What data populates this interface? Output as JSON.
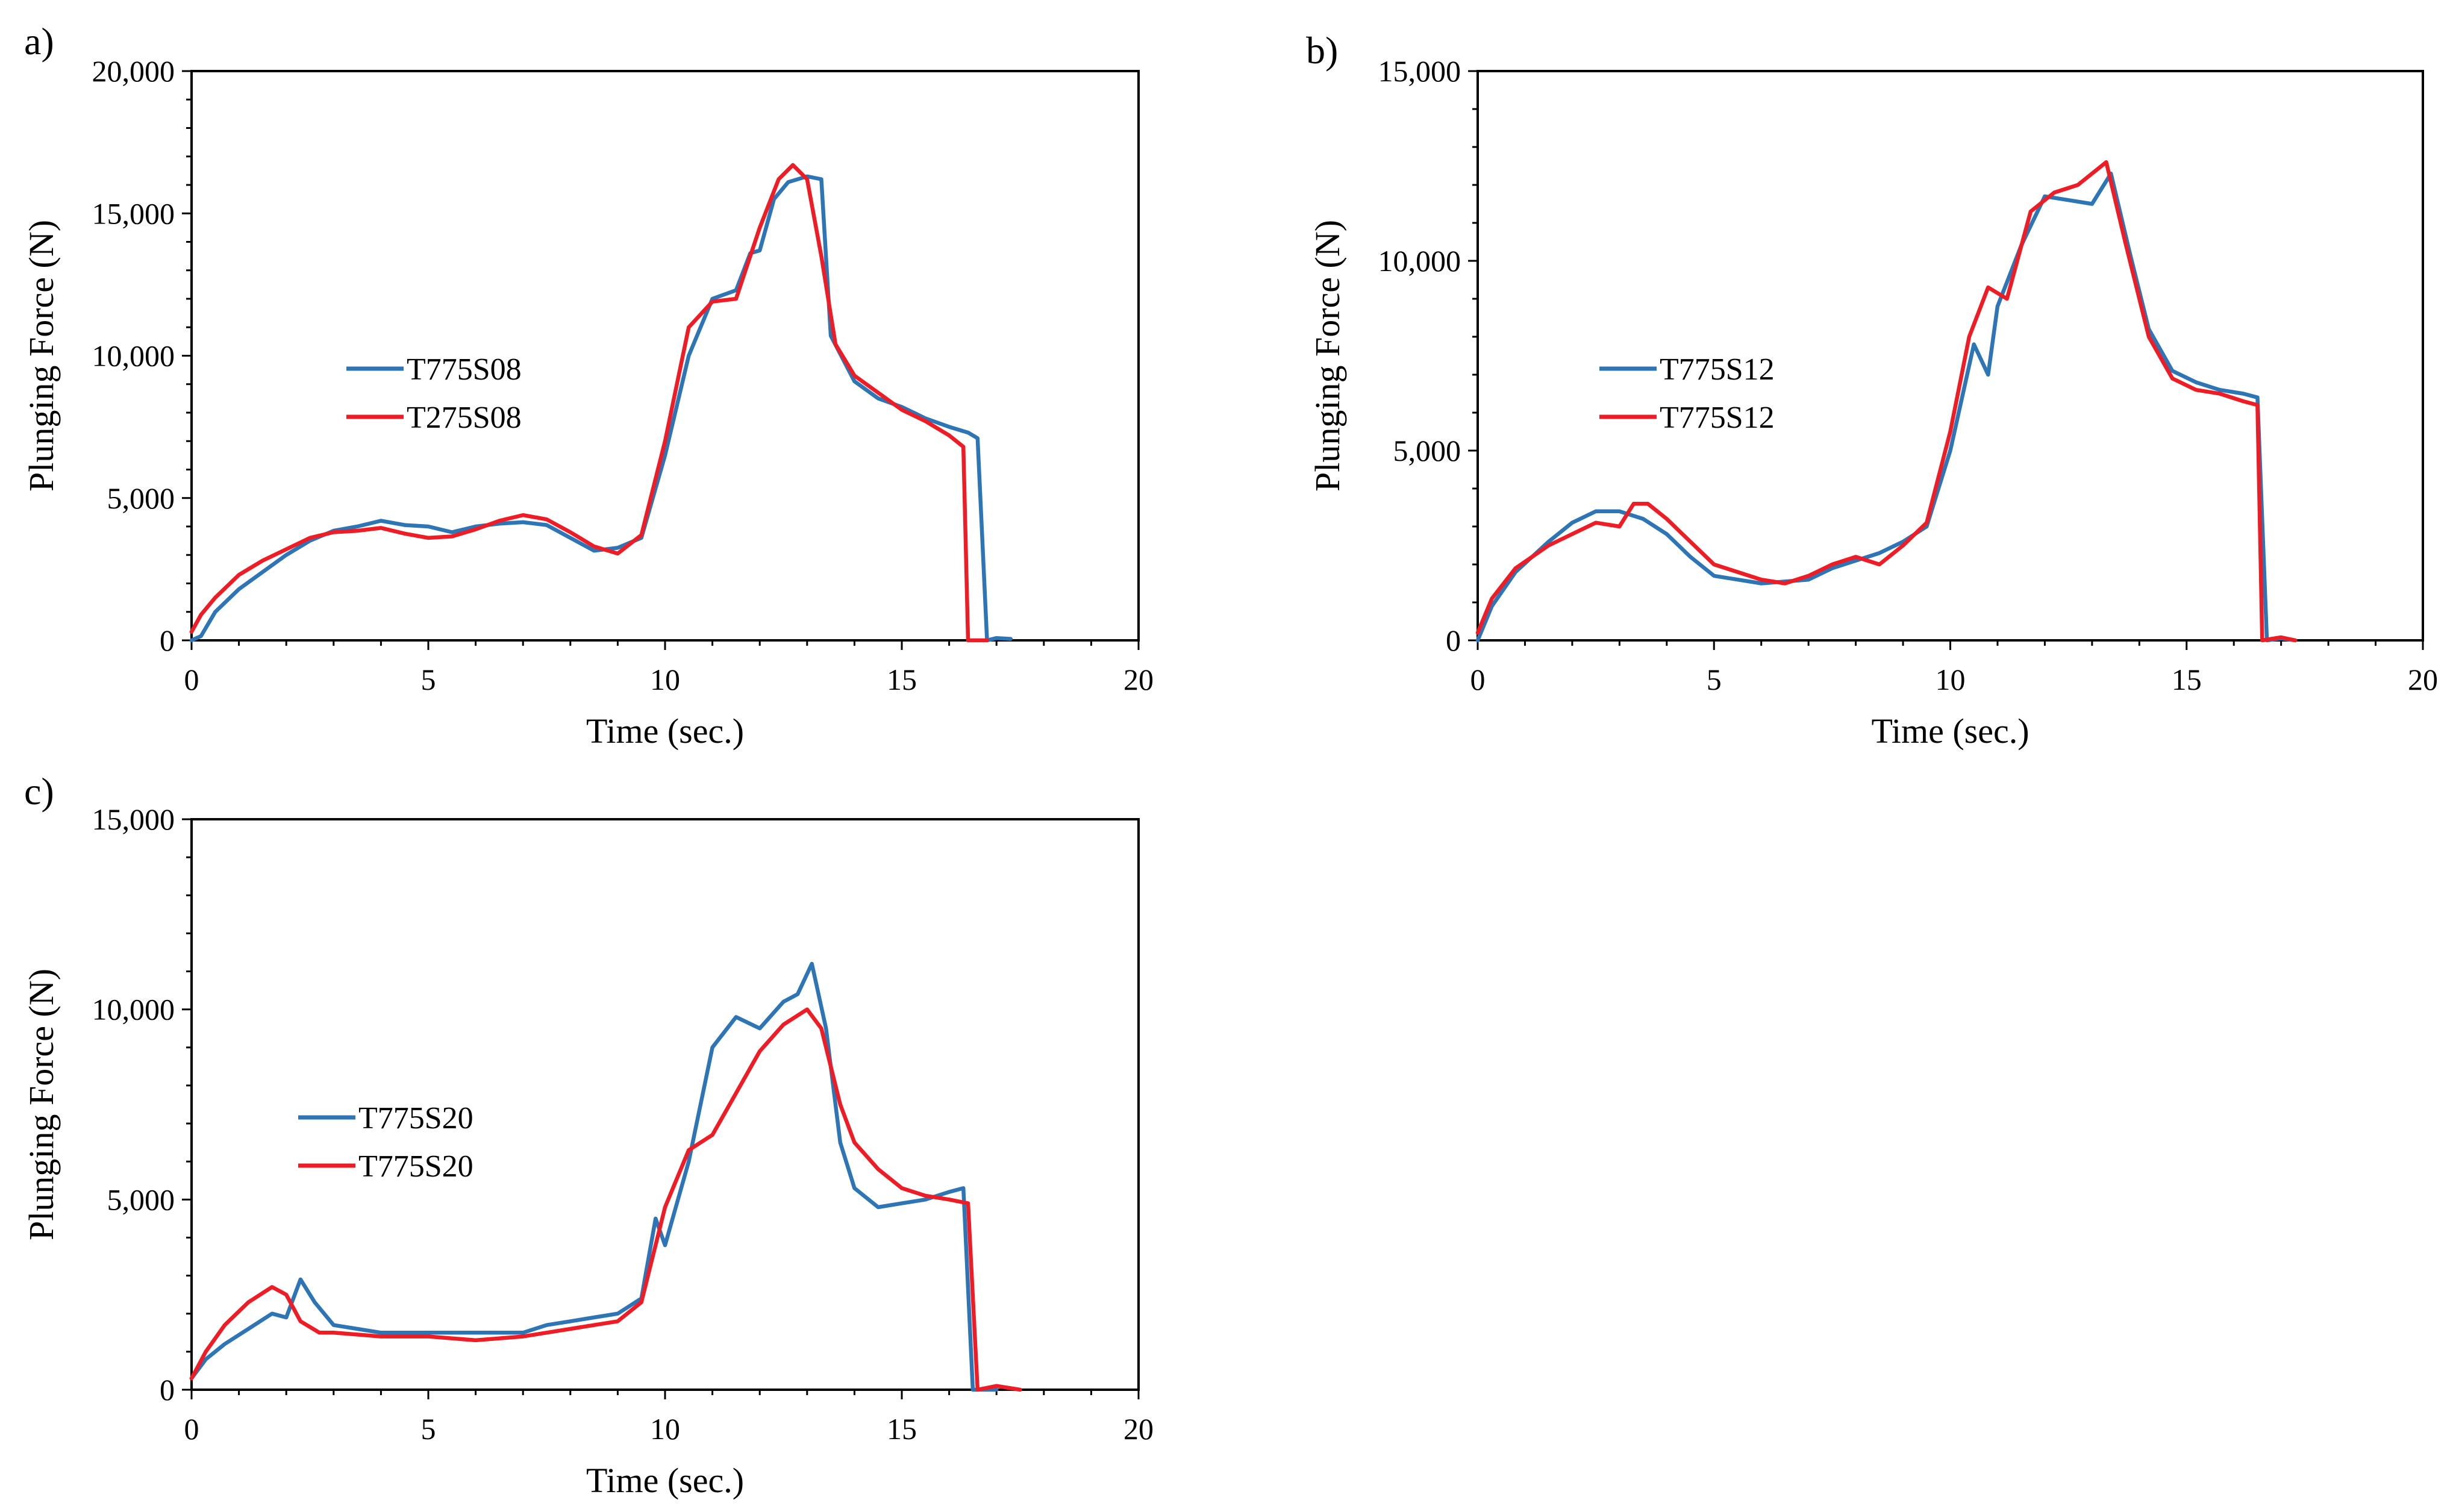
{
  "colors": {
    "blue": "#2E75B6",
    "red": "#EE1C25"
  },
  "chart_data": [
    {
      "panel_label": "a)",
      "type": "line",
      "xlabel": "Time (sec.)",
      "ylabel": "Plunging Force (N)",
      "xlim": [
        0,
        20
      ],
      "ylim": [
        0,
        20000
      ],
      "xticks": [
        "0",
        "5",
        "10",
        "15",
        "20"
      ],
      "yticks": [
        "0",
        "5,000",
        "10,000",
        "15,000",
        "20,000"
      ],
      "grid": false,
      "legend": "center-left",
      "series": [
        {
          "name": "T775S08",
          "color": "#2E75B6",
          "points": [
            [
              0,
              0
            ],
            [
              0.2,
              150
            ],
            [
              0.5,
              1000
            ],
            [
              1,
              1800
            ],
            [
              1.5,
              2400
            ],
            [
              2,
              3000
            ],
            [
              2.5,
              3500
            ],
            [
              3,
              3850
            ],
            [
              3.5,
              4000
            ],
            [
              4,
              4200
            ],
            [
              4.5,
              4050
            ],
            [
              5,
              4000
            ],
            [
              5.5,
              3800
            ],
            [
              6,
              4000
            ],
            [
              6.5,
              4100
            ],
            [
              7,
              4150
            ],
            [
              7.5,
              4050
            ],
            [
              8,
              3600
            ],
            [
              8.5,
              3150
            ],
            [
              9,
              3250
            ],
            [
              9.5,
              3600
            ],
            [
              10,
              6500
            ],
            [
              10.5,
              10000
            ],
            [
              11,
              12000
            ],
            [
              11.5,
              12300
            ],
            [
              11.8,
              13600
            ],
            [
              12,
              13700
            ],
            [
              12.3,
              15500
            ],
            [
              12.6,
              16100
            ],
            [
              13,
              16300
            ],
            [
              13.3,
              16200
            ],
            [
              13.5,
              10700
            ],
            [
              14,
              9100
            ],
            [
              14.5,
              8500
            ],
            [
              15,
              8200
            ],
            [
              15.5,
              7800
            ],
            [
              16,
              7500
            ],
            [
              16.4,
              7300
            ],
            [
              16.6,
              7100
            ],
            [
              16.8,
              0
            ],
            [
              17,
              80
            ],
            [
              17.3,
              50
            ]
          ]
        },
        {
          "name": "T275S08",
          "color": "#EE1C25",
          "points": [
            [
              0,
              300
            ],
            [
              0.2,
              900
            ],
            [
              0.5,
              1500
            ],
            [
              1,
              2300
            ],
            [
              1.5,
              2800
            ],
            [
              2,
              3200
            ],
            [
              2.5,
              3600
            ],
            [
              3,
              3800
            ],
            [
              3.5,
              3850
            ],
            [
              4,
              3950
            ],
            [
              4.5,
              3750
            ],
            [
              5,
              3600
            ],
            [
              5.5,
              3650
            ],
            [
              6,
              3900
            ],
            [
              6.5,
              4200
            ],
            [
              7,
              4400
            ],
            [
              7.5,
              4250
            ],
            [
              8,
              3800
            ],
            [
              8.5,
              3300
            ],
            [
              9,
              3050
            ],
            [
              9.5,
              3700
            ],
            [
              10,
              7000
            ],
            [
              10.5,
              11000
            ],
            [
              11,
              11900
            ],
            [
              11.5,
              12000
            ],
            [
              12,
              14500
            ],
            [
              12.4,
              16200
            ],
            [
              12.7,
              16700
            ],
            [
              13,
              16200
            ],
            [
              13.3,
              13500
            ],
            [
              13.6,
              10400
            ],
            [
              14,
              9300
            ],
            [
              14.5,
              8700
            ],
            [
              15,
              8100
            ],
            [
              15.5,
              7700
            ],
            [
              16,
              7200
            ],
            [
              16.3,
              6800
            ],
            [
              16.4,
              0
            ],
            [
              16.8,
              0
            ]
          ]
        }
      ]
    },
    {
      "panel_label": "b)",
      "type": "line",
      "xlabel": "Time (sec.)",
      "ylabel": "Plunging Force (N)",
      "xlim": [
        0,
        20
      ],
      "ylim": [
        0,
        15000
      ],
      "xticks": [
        "0",
        "5",
        "10",
        "15",
        "20"
      ],
      "yticks": [
        "0",
        "5,000",
        "10,000",
        "15,000"
      ],
      "grid": false,
      "legend": "center-left",
      "series": [
        {
          "name": "T775S12",
          "color": "#2E75B6",
          "points": [
            [
              0,
              0
            ],
            [
              0.3,
              900
            ],
            [
              0.8,
              1800
            ],
            [
              1.5,
              2600
            ],
            [
              2,
              3100
            ],
            [
              2.5,
              3400
            ],
            [
              3,
              3400
            ],
            [
              3.5,
              3200
            ],
            [
              4,
              2800
            ],
            [
              4.5,
              2200
            ],
            [
              5,
              1700
            ],
            [
              5.5,
              1600
            ],
            [
              6,
              1500
            ],
            [
              6.5,
              1550
            ],
            [
              7,
              1600
            ],
            [
              7.5,
              1900
            ],
            [
              8,
              2100
            ],
            [
              8.5,
              2300
            ],
            [
              9,
              2600
            ],
            [
              9.5,
              3000
            ],
            [
              10,
              5000
            ],
            [
              10.5,
              7800
            ],
            [
              10.8,
              7000
            ],
            [
              11,
              8800
            ],
            [
              11.5,
              10400
            ],
            [
              12,
              11700
            ],
            [
              12.5,
              11600
            ],
            [
              13,
              11500
            ],
            [
              13.4,
              12300
            ],
            [
              13.8,
              10200
            ],
            [
              14.2,
              8200
            ],
            [
              14.7,
              7100
            ],
            [
              15.2,
              6800
            ],
            [
              15.7,
              6600
            ],
            [
              16.2,
              6500
            ],
            [
              16.5,
              6400
            ],
            [
              16.7,
              0
            ],
            [
              17,
              50
            ],
            [
              17.3,
              0
            ]
          ]
        },
        {
          "name": "T775S12",
          "color": "#EE1C25",
          "points": [
            [
              0,
              200
            ],
            [
              0.3,
              1100
            ],
            [
              0.8,
              1900
            ],
            [
              1.5,
              2500
            ],
            [
              2,
              2800
            ],
            [
              2.5,
              3100
            ],
            [
              3,
              3000
            ],
            [
              3.3,
              3600
            ],
            [
              3.6,
              3600
            ],
            [
              4,
              3200
            ],
            [
              4.5,
              2600
            ],
            [
              5,
              2000
            ],
            [
              5.5,
              1800
            ],
            [
              6,
              1600
            ],
            [
              6.5,
              1500
            ],
            [
              7,
              1700
            ],
            [
              7.5,
              2000
            ],
            [
              8,
              2200
            ],
            [
              8.5,
              2000
            ],
            [
              9,
              2500
            ],
            [
              9.5,
              3100
            ],
            [
              10,
              5500
            ],
            [
              10.4,
              8000
            ],
            [
              10.8,
              9300
            ],
            [
              11.2,
              9000
            ],
            [
              11.7,
              11300
            ],
            [
              12.2,
              11800
            ],
            [
              12.7,
              12000
            ],
            [
              13.3,
              12600
            ],
            [
              13.7,
              10500
            ],
            [
              14.2,
              8000
            ],
            [
              14.7,
              6900
            ],
            [
              15.2,
              6600
            ],
            [
              15.7,
              6500
            ],
            [
              16.2,
              6300
            ],
            [
              16.5,
              6200
            ],
            [
              16.6,
              0
            ],
            [
              17,
              80
            ],
            [
              17.3,
              0
            ]
          ]
        }
      ]
    },
    {
      "panel_label": "c)",
      "type": "line",
      "xlabel": "Time (sec.)",
      "ylabel": "Plunging Force (N)",
      "xlim": [
        0,
        20
      ],
      "ylim": [
        0,
        15000
      ],
      "xticks": [
        "0",
        "5",
        "10",
        "15",
        "20"
      ],
      "yticks": [
        "0",
        "5,000",
        "10,000",
        "15,000"
      ],
      "grid": false,
      "legend": "center-left",
      "series": [
        {
          "name": "T775S20",
          "color": "#2E75B6",
          "points": [
            [
              0,
              300
            ],
            [
              0.3,
              800
            ],
            [
              0.7,
              1200
            ],
            [
              1.2,
              1600
            ],
            [
              1.7,
              2000
            ],
            [
              2,
              1900
            ],
            [
              2.3,
              2900
            ],
            [
              2.6,
              2300
            ],
            [
              3,
              1700
            ],
            [
              3.5,
              1600
            ],
            [
              4,
              1500
            ],
            [
              5,
              1500
            ],
            [
              6,
              1500
            ],
            [
              7,
              1500
            ],
            [
              7.5,
              1700
            ],
            [
              8,
              1800
            ],
            [
              8.5,
              1900
            ],
            [
              9,
              2000
            ],
            [
              9.5,
              2400
            ],
            [
              9.8,
              4500
            ],
            [
              10,
              3800
            ],
            [
              10.5,
              6000
            ],
            [
              11,
              9000
            ],
            [
              11.5,
              9800
            ],
            [
              12,
              9500
            ],
            [
              12.5,
              10200
            ],
            [
              12.8,
              10400
            ],
            [
              13.1,
              11200
            ],
            [
              13.4,
              9500
            ],
            [
              13.7,
              6500
            ],
            [
              14,
              5300
            ],
            [
              14.5,
              4800
            ],
            [
              15,
              4900
            ],
            [
              15.5,
              5000
            ],
            [
              16,
              5200
            ],
            [
              16.3,
              5300
            ],
            [
              16.5,
              0
            ],
            [
              17,
              0
            ]
          ]
        },
        {
          "name": "T775S20",
          "color": "#EE1C25",
          "points": [
            [
              0,
              300
            ],
            [
              0.3,
              1000
            ],
            [
              0.7,
              1700
            ],
            [
              1.2,
              2300
            ],
            [
              1.7,
              2700
            ],
            [
              2,
              2500
            ],
            [
              2.3,
              1800
            ],
            [
              2.7,
              1500
            ],
            [
              3,
              1500
            ],
            [
              4,
              1400
            ],
            [
              5,
              1400
            ],
            [
              6,
              1300
            ],
            [
              7,
              1400
            ],
            [
              7.5,
              1500
            ],
            [
              8,
              1600
            ],
            [
              8.5,
              1700
            ],
            [
              9,
              1800
            ],
            [
              9.5,
              2300
            ],
            [
              10,
              4800
            ],
            [
              10.5,
              6300
            ],
            [
              11,
              6700
            ],
            [
              11.5,
              7800
            ],
            [
              12,
              8900
            ],
            [
              12.5,
              9600
            ],
            [
              13,
              10000
            ],
            [
              13.3,
              9500
            ],
            [
              13.7,
              7500
            ],
            [
              14,
              6500
            ],
            [
              14.5,
              5800
            ],
            [
              15,
              5300
            ],
            [
              15.5,
              5100
            ],
            [
              16,
              5000
            ],
            [
              16.4,
              4900
            ],
            [
              16.6,
              0
            ],
            [
              17,
              100
            ],
            [
              17.5,
              0
            ]
          ]
        }
      ]
    }
  ]
}
